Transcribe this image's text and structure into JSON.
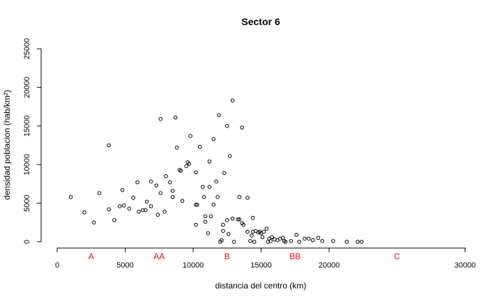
{
  "chart_data": {
    "type": "scatter",
    "title": "Sector 6",
    "xlabel": "distancia del centro (km)",
    "ylabel": "densidad poblacion (hab/km²)",
    "xlim": [
      0,
      31000
    ],
    "ylim": [
      0,
      25000
    ],
    "xticks": [
      0,
      5000,
      10000,
      15000,
      20000,
      30000
    ],
    "yticks": [
      0,
      5000,
      10000,
      15000,
      20000,
      25000
    ],
    "grid": false,
    "marker": "open-circle",
    "annotation_color": "#ff0000",
    "annotations": [
      {
        "label": "A",
        "x": 2500
      },
      {
        "label": "AA",
        "x": 7500
      },
      {
        "label": "B",
        "x": 12500
      },
      {
        "label": "BB",
        "x": 17500
      },
      {
        "label": "C",
        "x": 25000
      }
    ],
    "points": [
      [
        1000,
        5800
      ],
      [
        2000,
        3800
      ],
      [
        2700,
        2500
      ],
      [
        3100,
        6300
      ],
      [
        3800,
        12500
      ],
      [
        3800,
        4200
      ],
      [
        4200,
        2800
      ],
      [
        4600,
        4600
      ],
      [
        4800,
        6700
      ],
      [
        4900,
        4700
      ],
      [
        5300,
        4300
      ],
      [
        5600,
        5700
      ],
      [
        5900,
        7700
      ],
      [
        6000,
        3900
      ],
      [
        6300,
        4100
      ],
      [
        6500,
        4100
      ],
      [
        6600,
        5200
      ],
      [
        6900,
        4600
      ],
      [
        6900,
        7800
      ],
      [
        7300,
        7300
      ],
      [
        7400,
        3500
      ],
      [
        7600,
        15900
      ],
      [
        7600,
        6300
      ],
      [
        7900,
        3900
      ],
      [
        8000,
        8500
      ],
      [
        8300,
        7700
      ],
      [
        8500,
        5800
      ],
      [
        8500,
        6600
      ],
      [
        8700,
        16100
      ],
      [
        8800,
        12200
      ],
      [
        9000,
        9300
      ],
      [
        9100,
        9200
      ],
      [
        9200,
        5300
      ],
      [
        9500,
        9800
      ],
      [
        9600,
        10300
      ],
      [
        9700,
        10100
      ],
      [
        9800,
        13700
      ],
      [
        10200,
        9000
      ],
      [
        10200,
        4800
      ],
      [
        10300,
        4800
      ],
      [
        10200,
        2200
      ],
      [
        10500,
        12300
      ],
      [
        10700,
        7100
      ],
      [
        10800,
        5800
      ],
      [
        10900,
        2600
      ],
      [
        10900,
        3300
      ],
      [
        11100,
        1100
      ],
      [
        11200,
        10400
      ],
      [
        11200,
        7100
      ],
      [
        11300,
        3300
      ],
      [
        11500,
        4800
      ],
      [
        11500,
        13300
      ],
      [
        11700,
        7800
      ],
      [
        11800,
        5800
      ],
      [
        11900,
        16400
      ],
      [
        12000,
        0
      ],
      [
        12100,
        200
      ],
      [
        12200,
        2200
      ],
      [
        12200,
        1400
      ],
      [
        12300,
        8900
      ],
      [
        12500,
        15000
      ],
      [
        12500,
        2800
      ],
      [
        12600,
        1000
      ],
      [
        12700,
        11100
      ],
      [
        12900,
        18300
      ],
      [
        12900,
        3000
      ],
      [
        13000,
        0
      ],
      [
        13300,
        2900
      ],
      [
        13400,
        2900
      ],
      [
        13400,
        5800
      ],
      [
        13600,
        14800
      ],
      [
        13600,
        2400
      ],
      [
        13700,
        2200
      ],
      [
        14000,
        1300
      ],
      [
        14000,
        5700
      ],
      [
        14200,
        100
      ],
      [
        14300,
        800
      ],
      [
        14400,
        1300
      ],
      [
        14400,
        3100
      ],
      [
        14500,
        0
      ],
      [
        14600,
        1400
      ],
      [
        14800,
        1200
      ],
      [
        14900,
        1300
      ],
      [
        15000,
        1100
      ],
      [
        15100,
        600
      ],
      [
        15200,
        1300
      ],
      [
        15400,
        1700
      ],
      [
        15500,
        0
      ],
      [
        15600,
        400
      ],
      [
        15700,
        100
      ],
      [
        15800,
        600
      ],
      [
        16000,
        300
      ],
      [
        16200,
        200
      ],
      [
        16400,
        400
      ],
      [
        16600,
        500
      ],
      [
        16700,
        100
      ],
      [
        16800,
        0
      ],
      [
        17200,
        100
      ],
      [
        17600,
        900
      ],
      [
        17800,
        0
      ],
      [
        18200,
        400
      ],
      [
        18500,
        400
      ],
      [
        18800,
        200
      ],
      [
        19200,
        500
      ],
      [
        19500,
        100
      ],
      [
        20300,
        100
      ],
      [
        21300,
        0
      ],
      [
        22100,
        0
      ],
      [
        22400,
        0
      ]
    ]
  }
}
